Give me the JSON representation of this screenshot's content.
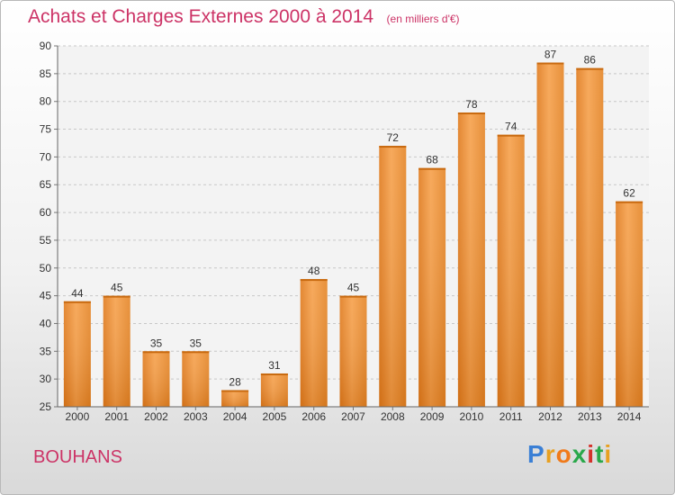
{
  "header": {
    "title": "Achats et Charges Externes 2000 à 2014",
    "unit": "(en milliers d'€)"
  },
  "footer": {
    "commune": "BOUHANS",
    "brand": {
      "letters": [
        "P",
        "r",
        "o",
        "x",
        "i",
        "t",
        "i"
      ],
      "colors": [
        "#3a7fd5",
        "#e8a020",
        "#f07a1a",
        "#2aa84a",
        "#d4322c",
        "#2aa84a",
        "#e8a020"
      ]
    }
  },
  "chart_data": {
    "type": "bar",
    "categories": [
      "2000",
      "2001",
      "2002",
      "2003",
      "2004",
      "2005",
      "2006",
      "2007",
      "2008",
      "2009",
      "2010",
      "2011",
      "2012",
      "2013",
      "2014"
    ],
    "values": [
      44,
      45,
      35,
      35,
      28,
      31,
      48,
      45,
      72,
      68,
      78,
      74,
      87,
      86,
      62
    ],
    "ylim": [
      25,
      90
    ],
    "yticks": [
      25,
      30,
      35,
      40,
      45,
      50,
      55,
      60,
      65,
      70,
      75,
      80,
      85,
      90
    ],
    "grid": true,
    "bar_color": "#f0922e"
  }
}
